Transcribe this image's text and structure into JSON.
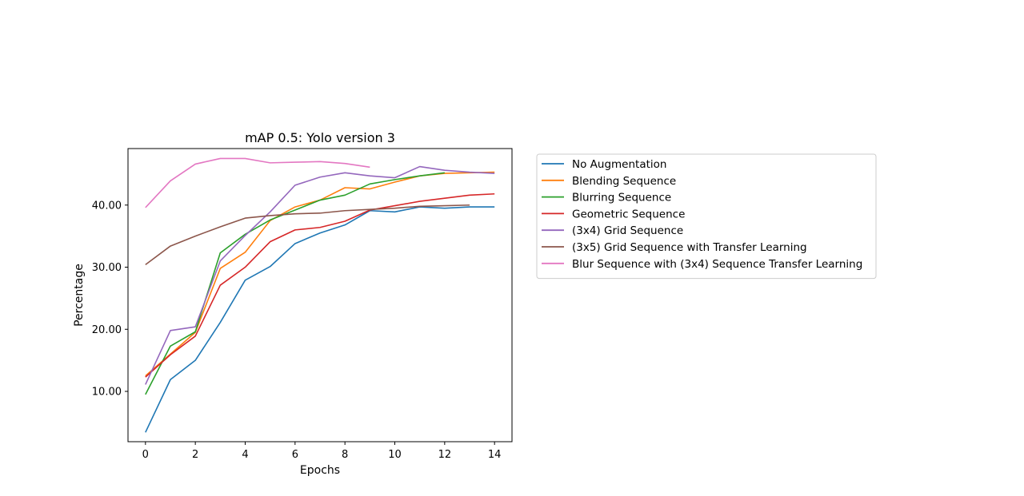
{
  "chart_data": {
    "type": "line",
    "title": "mAP 0.5: Yolo version 3",
    "xlabel": "Epochs",
    "ylabel": "Percentage",
    "xlim": [
      -0.7,
      14.7
    ],
    "ylim": [
      1.9,
      49.1
    ],
    "x_ticks": [
      0,
      2,
      4,
      6,
      8,
      10,
      12,
      14
    ],
    "x_tick_labels": [
      "0",
      "2",
      "4",
      "6",
      "8",
      "10",
      "12",
      "14"
    ],
    "y_ticks": [
      10,
      20,
      30,
      40
    ],
    "y_tick_labels": [
      "10.00",
      "20.00",
      "30.00",
      "40.00"
    ],
    "grid": false,
    "legend_position": "outside-right-top",
    "series": [
      {
        "name": "No Augmentation",
        "color": "#1f77b4",
        "x": [
          0,
          1,
          2,
          3,
          4,
          5,
          6,
          7,
          8,
          9,
          10,
          11,
          12,
          13,
          14
        ],
        "y": [
          3.4,
          11.9,
          15.0,
          21.1,
          27.9,
          30.1,
          33.8,
          35.5,
          36.8,
          39.1,
          38.9,
          39.7,
          39.5,
          39.7,
          39.7
        ]
      },
      {
        "name": "Blending Sequence",
        "color": "#ff7f0e",
        "x": [
          0,
          1,
          2,
          3,
          4,
          5,
          6,
          7,
          8,
          9,
          10,
          11,
          12,
          13,
          14
        ],
        "y": [
          12.5,
          16.0,
          19.5,
          29.8,
          32.4,
          37.5,
          39.7,
          40.8,
          42.8,
          42.6,
          43.7,
          44.7,
          45.1,
          45.2,
          45.3
        ]
      },
      {
        "name": "Blurring Sequence",
        "color": "#2ca02c",
        "x": [
          0,
          1,
          2,
          3,
          4,
          5,
          6,
          7,
          8,
          9,
          10,
          11,
          12
        ],
        "y": [
          9.5,
          17.3,
          19.6,
          32.3,
          35.3,
          37.6,
          39.2,
          40.8,
          41.6,
          43.4,
          44.1,
          44.7,
          45.2
        ]
      },
      {
        "name": "Geometric Sequence",
        "color": "#d62728",
        "x": [
          0,
          1,
          2,
          3,
          4,
          5,
          6,
          7,
          8,
          9,
          10,
          11,
          12,
          13,
          14
        ],
        "y": [
          12.3,
          15.9,
          18.9,
          27.1,
          30.0,
          34.1,
          36.0,
          36.4,
          37.4,
          39.2,
          39.9,
          40.6,
          41.1,
          41.6,
          41.8
        ]
      },
      {
        "name": "(3x4) Grid Sequence",
        "color": "#9467bd",
        "x": [
          0,
          1,
          2,
          3,
          4,
          5,
          6,
          7,
          8,
          9,
          10,
          11,
          12,
          13,
          14
        ],
        "y": [
          11.1,
          19.8,
          20.4,
          31.0,
          35.1,
          38.9,
          43.2,
          44.5,
          45.2,
          44.7,
          44.4,
          46.2,
          45.6,
          45.3,
          45.1
        ]
      },
      {
        "name": "(3x5) Grid Sequence with Transfer Learning",
        "color": "#8c564b",
        "x": [
          0,
          1,
          2,
          3,
          4,
          5,
          6,
          7,
          8,
          9,
          10,
          11,
          12,
          13
        ],
        "y": [
          30.4,
          33.4,
          35.0,
          36.5,
          37.9,
          38.3,
          38.6,
          38.7,
          39.1,
          39.3,
          39.5,
          39.8,
          39.9,
          40.0
        ]
      },
      {
        "name": "Blur Sequence with (3x4) Sequence Transfer Learning",
        "color": "#e377c2",
        "x": [
          0,
          1,
          2,
          3,
          4,
          5,
          6,
          7,
          8,
          9
        ],
        "y": [
          39.6,
          43.9,
          46.6,
          47.5,
          47.5,
          46.8,
          46.9,
          47.0,
          46.7,
          46.1
        ]
      }
    ]
  }
}
